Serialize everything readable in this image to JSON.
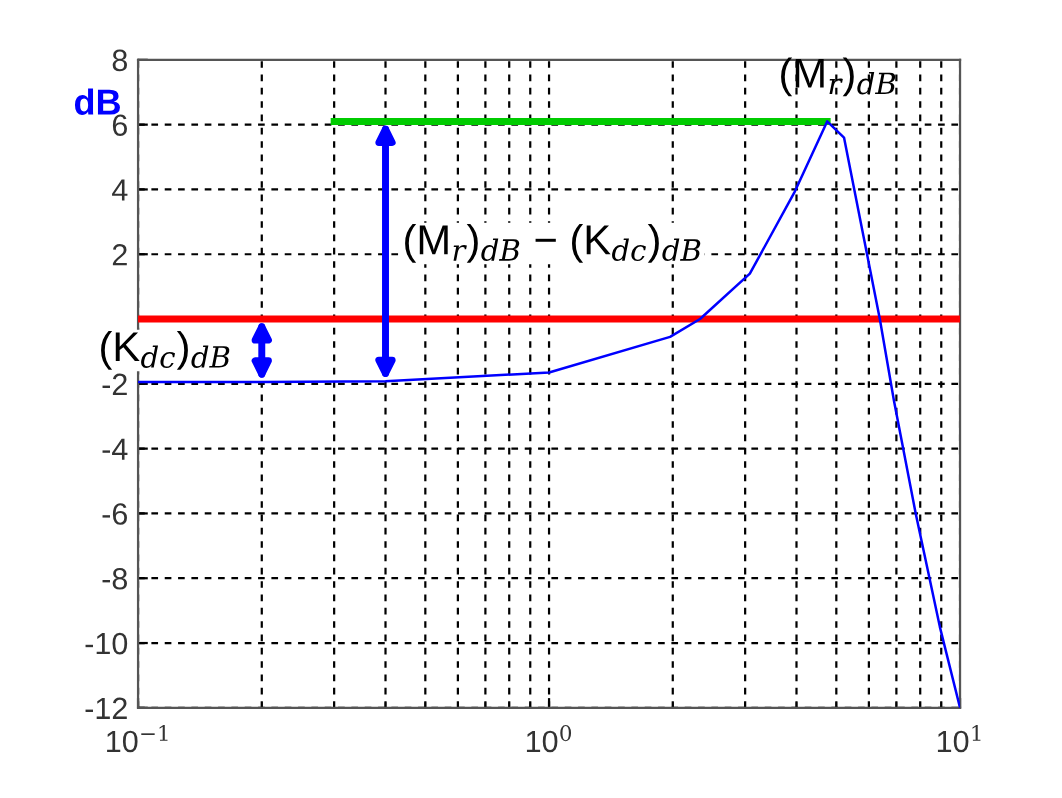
{
  "chart_data": {
    "type": "line",
    "ylabel": "dB",
    "x": [
      0.1,
      0.2,
      0.4,
      1.0,
      1.97,
      2.33,
      3.08,
      3.95,
      4.75,
      5.22,
      6.38,
      6.9,
      7.8,
      8.93,
      10
    ],
    "series": [
      {
        "color": "#0000ff",
        "values": [
          -1.94,
          -1.94,
          -1.92,
          -1.65,
          -0.55,
          0,
          1.4,
          3.9,
          6.1,
          5.6,
          0,
          -2.5,
          -6,
          -9.5,
          -12
        ]
      },
      {
        "color": "#00cc00",
        "x": [
          0.3,
          4.75
        ],
        "values": [
          6.1,
          6.1
        ]
      }
    ],
    "ref_lines": [
      {
        "axis": "y",
        "value": 0,
        "color": "#ff0000"
      }
    ],
    "annotations": [
      {
        "text": "(K$_{dc}$)$_{dB}$",
        "x": 0.2,
        "y": -1.94
      },
      {
        "text": "(M$_{r}$)$_{dB}$ − (K$_{dc}$)$_{dB}$",
        "x": 0.4,
        "y": -1.92
      },
      {
        "text": "(M$_{r}$)$_{dB}$",
        "x": 4.75,
        "y": 6.1
      }
    ],
    "xlim": [
      0.1,
      10
    ],
    "xticks": [
      {
        "value": 0.1,
        "label": "10$^{−1}$"
      },
      {
        "value": 1,
        "label": "10$^{0}$"
      },
      {
        "value": 10,
        "label": "10$^{1}$"
      }
    ],
    "ylim": [
      -12,
      8
    ],
    "yticks": [
      -12,
      -10,
      -8,
      -6,
      -4,
      -2,
      2,
      4,
      6,
      8
    ],
    "log": "x",
    "grid": true,
    "legend": false
  }
}
